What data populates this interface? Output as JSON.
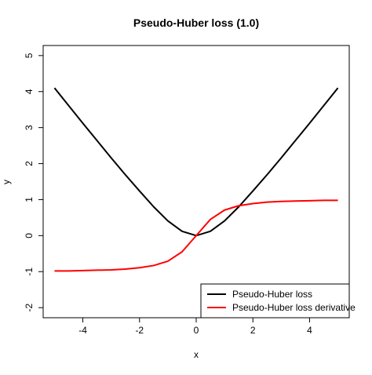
{
  "chart_data": {
    "type": "line",
    "title": "Pseudo-Huber loss (1.0)",
    "x_label": "x",
    "y_label": "y",
    "x": [
      -5,
      -4.5,
      -4,
      -3.5,
      -3,
      -2.5,
      -2,
      -1.5,
      -1,
      -0.5,
      0,
      0.5,
      1,
      1.5,
      2,
      2.5,
      3,
      3.5,
      4,
      4.5,
      5
    ],
    "series": [
      {
        "name": "Pseudo-Huber loss",
        "color": "#000000",
        "values": [
          4.1,
          3.61,
          3.12,
          2.64,
          2.16,
          1.69,
          1.24,
          0.8,
          0.41,
          0.12,
          0,
          0.12,
          0.41,
          0.8,
          1.24,
          1.69,
          2.16,
          2.64,
          3.12,
          3.61,
          4.1
        ]
      },
      {
        "name": "Pseudo-Huber loss derivative",
        "color": "#ff0000",
        "values": [
          -0.98,
          -0.98,
          -0.97,
          -0.96,
          -0.95,
          -0.93,
          -0.89,
          -0.83,
          -0.71,
          -0.45,
          0,
          0.45,
          0.71,
          0.83,
          0.89,
          0.93,
          0.95,
          0.96,
          0.97,
          0.98,
          0.98
        ]
      }
    ],
    "xlim": [
      -5.4,
      5.4
    ],
    "xticks": [
      -4,
      -2,
      0,
      2,
      4
    ],
    "ylim": [
      -2.28,
      5.28
    ],
    "yticks": [
      -2,
      -1,
      0,
      1,
      2,
      3,
      4,
      5
    ],
    "legend_position": "bottomright"
  }
}
